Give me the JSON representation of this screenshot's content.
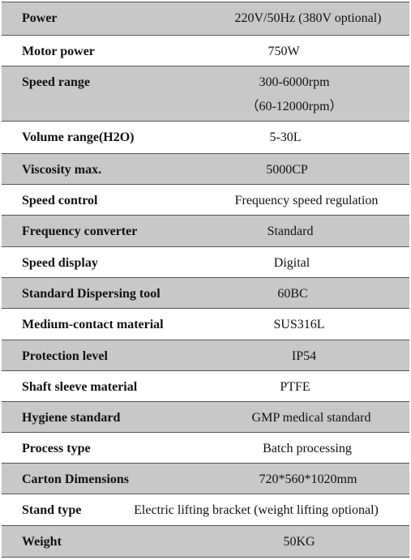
{
  "table": {
    "rows": [
      [
        "Power",
        "220V/50Hz (380V optional)"
      ],
      [
        "Motor power",
        "750W"
      ],
      [
        "Speed range",
        "300-6000rpm",
        "（60-12000rpm）"
      ],
      [
        "Volume range(H2O)",
        "5-30L"
      ],
      [
        "Viscosity max.",
        "5000CP"
      ],
      [
        "Speed control",
        "Frequency speed regulation"
      ],
      [
        "Frequency converter",
        "Standard"
      ],
      [
        "Speed display",
        "Digital"
      ],
      [
        "Standard Dispersing tool",
        "60BC"
      ],
      [
        "Medium-contact material",
        "SUS316L"
      ],
      [
        "Protection level",
        "IP54"
      ],
      [
        "Shaft sleeve material",
        "PTFE"
      ],
      [
        "Hygiene standard",
        "GMP medical standard"
      ],
      [
        "Process type",
        "Batch processing"
      ],
      [
        "Carton Dimensions",
        "720*560*1020mm"
      ],
      [
        "Stand type",
        "Electric lifting bracket (weight lifting optional)"
      ],
      [
        "Weight",
        "50KG"
      ]
    ]
  }
}
